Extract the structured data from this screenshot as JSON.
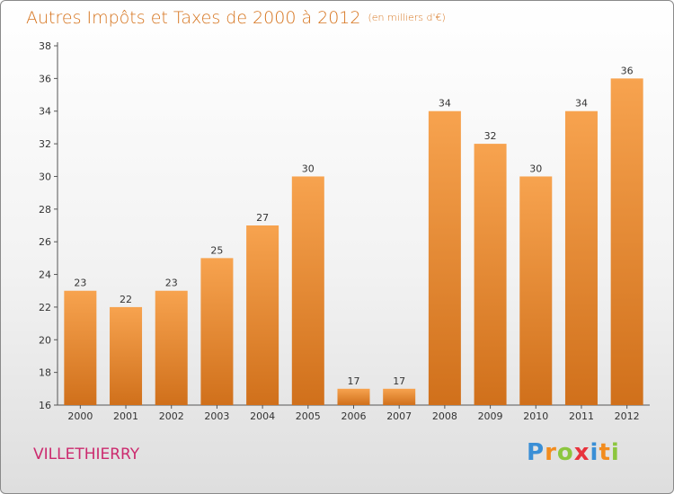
{
  "title": "Autres Impôts et Taxes de 2000 à 2012",
  "unit": "(en milliers d'€)",
  "commune": "VILLETHIERRY",
  "logo": {
    "letters": [
      {
        "ch": "P",
        "color": "#3a8fd6"
      },
      {
        "ch": "r",
        "color": "#f28c1e"
      },
      {
        "ch": "o",
        "color": "#8cc63f"
      },
      {
        "ch": "x",
        "color": "#e8323c"
      },
      {
        "ch": "i",
        "color": "#3a8fd6"
      },
      {
        "ch": "t",
        "color": "#f28c1e"
      },
      {
        "ch": "i",
        "color": "#8cc63f"
      }
    ]
  },
  "colors": {
    "bar_top": "#f7a34f",
    "bar_bottom": "#d0701b",
    "title": "#d6741e",
    "commune": "#cc2a6e"
  },
  "chart_data": {
    "type": "bar",
    "title": "Autres Impôts et Taxes de 2000 à 2012",
    "xlabel": "",
    "ylabel": "",
    "categories": [
      "2000",
      "2001",
      "2002",
      "2003",
      "2004",
      "2005",
      "2006",
      "2007",
      "2008",
      "2009",
      "2010",
      "2011",
      "2012"
    ],
    "values": [
      23,
      22,
      23,
      25,
      27,
      30,
      17,
      17,
      34,
      32,
      30,
      34,
      36
    ],
    "ylim": [
      16,
      38
    ],
    "yticks": [
      16,
      18,
      20,
      22,
      24,
      26,
      28,
      30,
      32,
      34,
      36,
      38
    ],
    "grid": false,
    "legend": "none"
  }
}
